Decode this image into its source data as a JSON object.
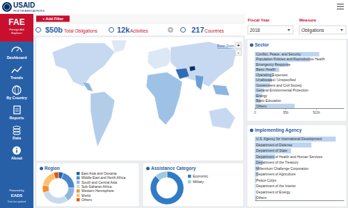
{
  "header": {
    "logo": "USAID",
    "tagline": "FROM THE AMERICAN PEOPLE"
  },
  "sidebar": {
    "app": "FAE",
    "app_name": [
      "Foreign Aid",
      "Explorer"
    ],
    "nav": [
      "Dashboard",
      "Trends",
      "By Country",
      "Reports",
      "Data",
      "About"
    ],
    "powered_by": "Powered by",
    "powered_name": "EADS",
    "updated": "Data last updated"
  },
  "filter_button": "+ Add Filter",
  "kpis": [
    {
      "value": "$50b",
      "label": "Total Obligations"
    },
    {
      "value": "12k",
      "label": "Activities"
    },
    {
      "value": "217",
      "label": "Countries"
    }
  ],
  "controls": [
    {
      "label": "Fiscal Year",
      "selected": "2018"
    },
    {
      "label": "Measure",
      "selected": "Obligations"
    }
  ],
  "map": {
    "reset": "Reset Zoom",
    "zoom": [
      "+",
      "-"
    ]
  },
  "chart_data": [
    {
      "type": "bar",
      "title": "Sector",
      "orientation": "horizontal",
      "categories": [
        "Conflict, Peace, and Security",
        "Population Policies and Reproductive Health",
        "Emergency Response",
        "Basic Health",
        "Operating Expenses",
        "Unallocated / Unspecified",
        "Government and Civil Society",
        "General Environmental Protection",
        "Energy",
        "Basic Education",
        "Others"
      ],
      "values": [
        10.5,
        9.0,
        5.5,
        4.0,
        3.0,
        2.8,
        2.5,
        1.5,
        1.2,
        1.0,
        6.5
      ],
      "color": "#bcd4ee",
      "xlim": [
        0,
        14.5
      ],
      "xticks": [
        0,
        {
          "value": 5,
          "label": "$5b"
        },
        {
          "value": 10,
          "label": "$10b"
        }
      ]
    },
    {
      "type": "bar",
      "title": "Implementing Agency",
      "orientation": "horizontal",
      "categories": [
        "U.S. Agency for International Development",
        "Department of Defense",
        "Department of State",
        "Department of Health and Human Services",
        "Department of the Treasury",
        "Millennium Challenge Corporation",
        "Department of Agriculture",
        "Peace Corps",
        "Department of the Interior",
        "Department of Energy",
        "Others"
      ],
      "values": [
        20,
        14,
        9,
        5,
        2,
        1,
        0.8,
        0.4,
        0.2,
        0.15,
        0.5
      ],
      "color": "#bcd4ee",
      "xlim": [
        0,
        22
      ],
      "tick_labels": false
    },
    {
      "type": "donut",
      "title": "Region",
      "categories": [
        "East Asia and Oceania",
        "Middle East and North Africa",
        "South and Central Asia",
        "Sub-Saharan Africa",
        "Western Hemisphere",
        "World",
        "Others"
      ],
      "values": [
        5,
        20,
        15,
        30,
        8,
        17,
        5
      ],
      "colors": [
        "#1f5fa8",
        "#4a86c8",
        "#8db5e0",
        "#c6dbef",
        "#f28e2b",
        "#fdbf6f",
        "#e6550d"
      ]
    },
    {
      "type": "donut",
      "title": "Assistance Category",
      "categories": [
        "Economic",
        "Military"
      ],
      "values": [
        88,
        12
      ],
      "colors": [
        "#2f7bc4",
        "#9ecae1"
      ]
    }
  ]
}
